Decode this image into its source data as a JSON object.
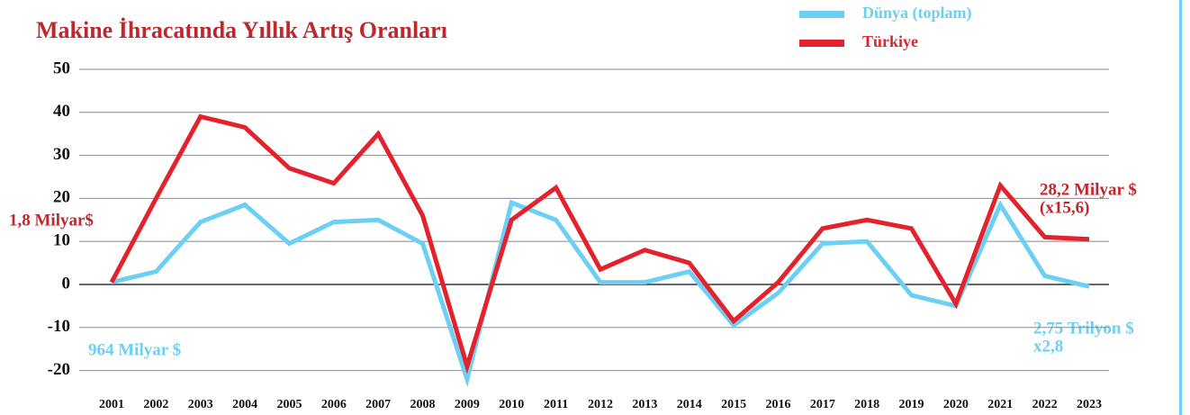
{
  "chart_data": {
    "type": "line",
    "title": "Makine İhracatında Yıllık Artış Oranları",
    "categories": [
      "2001",
      "2002",
      "2003",
      "2004",
      "2005",
      "2006",
      "2007",
      "2008",
      "2009",
      "2010",
      "2011",
      "2012",
      "2013",
      "2014",
      "2015",
      "2016",
      "2017",
      "2018",
      "2019",
      "2020",
      "2021",
      "2022",
      "2023"
    ],
    "series": [
      {
        "name": "Dünya (toplam)",
        "color": "#6ccff3",
        "values": [
          0.5,
          3,
          14.5,
          18.5,
          9.5,
          14.5,
          15,
          9.5,
          -22,
          19,
          15,
          0.5,
          0.5,
          3,
          -9.5,
          -2,
          9.5,
          10,
          -2.5,
          -5,
          18.5,
          2,
          -0.5
        ]
      },
      {
        "name": "Türkiye",
        "color": "#e3222c",
        "values": [
          0.5,
          20,
          39,
          36.5,
          27,
          23.5,
          35,
          16,
          -19,
          15,
          22.5,
          3.5,
          8,
          5,
          -8.5,
          0.5,
          13,
          15,
          13,
          -4.5,
          23,
          11,
          10.5
        ]
      }
    ],
    "ylim": [
      -24,
      52
    ],
    "yticks": [
      -20,
      -10,
      0,
      10,
      20,
      30,
      40,
      50
    ],
    "grid": true,
    "annotations": [
      "1,8 Milyar$",
      "964 Milyar $",
      "28,2 Milyar $",
      "(x15,6)",
      "2,75 Trilyon $",
      "x2,8"
    ]
  }
}
